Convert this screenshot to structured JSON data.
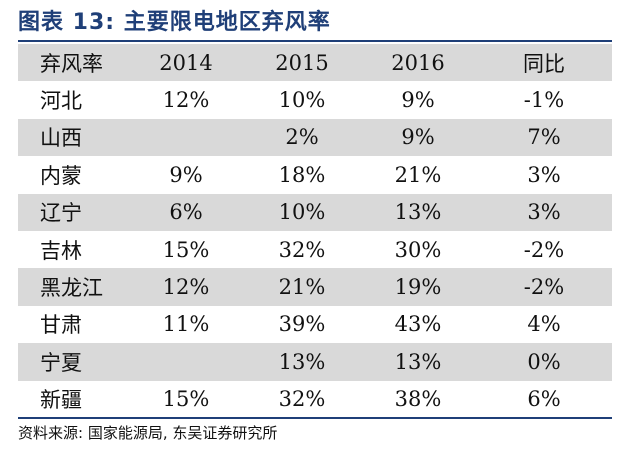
{
  "title": "图表  13:  主要限电地区弃风率",
  "table": {
    "headers": [
      "弃风率",
      "2014",
      "2015",
      "2016",
      "同比"
    ],
    "rows": [
      [
        "河北",
        "12%",
        "10%",
        "9%",
        "-1%"
      ],
      [
        "山西",
        "",
        "2%",
        "9%",
        "7%"
      ],
      [
        "内蒙",
        "9%",
        "18%",
        "21%",
        "3%"
      ],
      [
        "辽宁",
        "6%",
        "10%",
        "13%",
        "3%"
      ],
      [
        "吉林",
        "15%",
        "32%",
        "30%",
        "-2%"
      ],
      [
        "黑龙江",
        "12%",
        "21%",
        "19%",
        "-2%"
      ],
      [
        "甘肃",
        "11%",
        "39%",
        "43%",
        "4%"
      ],
      [
        "宁夏",
        "",
        "13%",
        "13%",
        "0%"
      ],
      [
        "新疆",
        "15%",
        "32%",
        "38%",
        "6%"
      ]
    ]
  },
  "source": "资料来源:  国家能源局,  东吴证券研究所",
  "colors": {
    "title": "#1f3f78",
    "rule": "#1f3f78",
    "row_shade": "#d9d9d9"
  }
}
